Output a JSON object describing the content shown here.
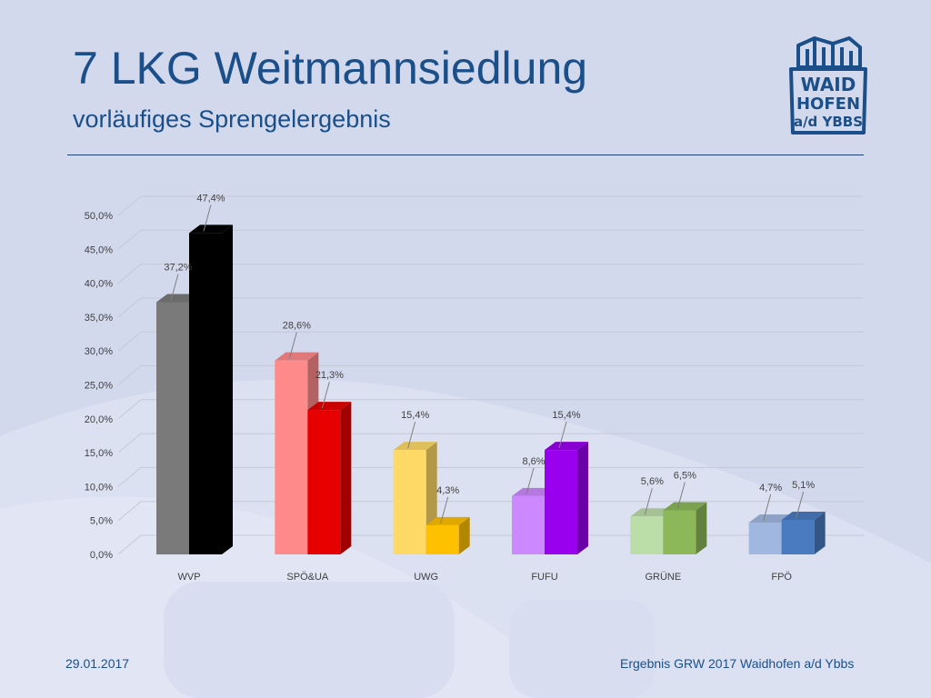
{
  "slide": {
    "title": "7 LKG Weitmannsiedlung",
    "subtitle": "vorläufiges Sprengelergebnis",
    "date": "29.01.2017",
    "footer": "Ergebnis GRW 2017 Waidhofen a/d Ybbs"
  },
  "logo": {
    "line1": "WAID",
    "line2": "HOFEN",
    "line3": "a/d YBBS",
    "icon": "castle-tower-icon",
    "color": "#1b4f8a"
  },
  "colors": {
    "background": "#d3d9ec",
    "title": "#1b4f8a"
  },
  "chart_data": {
    "type": "bar",
    "style": "3d-clustered-column",
    "categories": [
      "WVP",
      "SPÖ&UA",
      "UWG",
      "FUFU",
      "GRÜNE",
      "FPÖ"
    ],
    "series": [
      {
        "values": [
          37.2,
          28.6,
          15.4,
          8.6,
          5.6,
          4.7
        ],
        "labels": [
          "37,2%",
          "28,6%",
          "15,4%",
          "8,6%",
          "5,6%",
          "4,7%"
        ]
      },
      {
        "values": [
          47.4,
          21.3,
          4.3,
          15.4,
          6.5,
          5.1
        ],
        "labels": [
          "47,4%",
          "21,3%",
          "4,3%",
          "15,4%",
          "6,5%",
          "5,1%"
        ]
      }
    ],
    "bar_colors": [
      [
        "#7a7a7a",
        "#000000"
      ],
      [
        "#ff8a8a",
        "#e60000"
      ],
      [
        "#ffd966",
        "#ffc000"
      ],
      [
        "#cc88ff",
        "#9900ee"
      ],
      [
        "#bbdda8",
        "#8cb85a"
      ],
      [
        "#a0b8e0",
        "#4a7bc0"
      ]
    ],
    "ylim": [
      0,
      50
    ],
    "yticks": [
      0,
      5,
      10,
      15,
      20,
      25,
      30,
      35,
      40,
      45,
      50
    ],
    "ytick_labels": [
      "0,0%",
      "5,0%",
      "10,0%",
      "15,0%",
      "20,0%",
      "25,0%",
      "30,0%",
      "35,0%",
      "40,0%",
      "45,0%",
      "50,0%"
    ],
    "grid": true,
    "legend": "none"
  }
}
